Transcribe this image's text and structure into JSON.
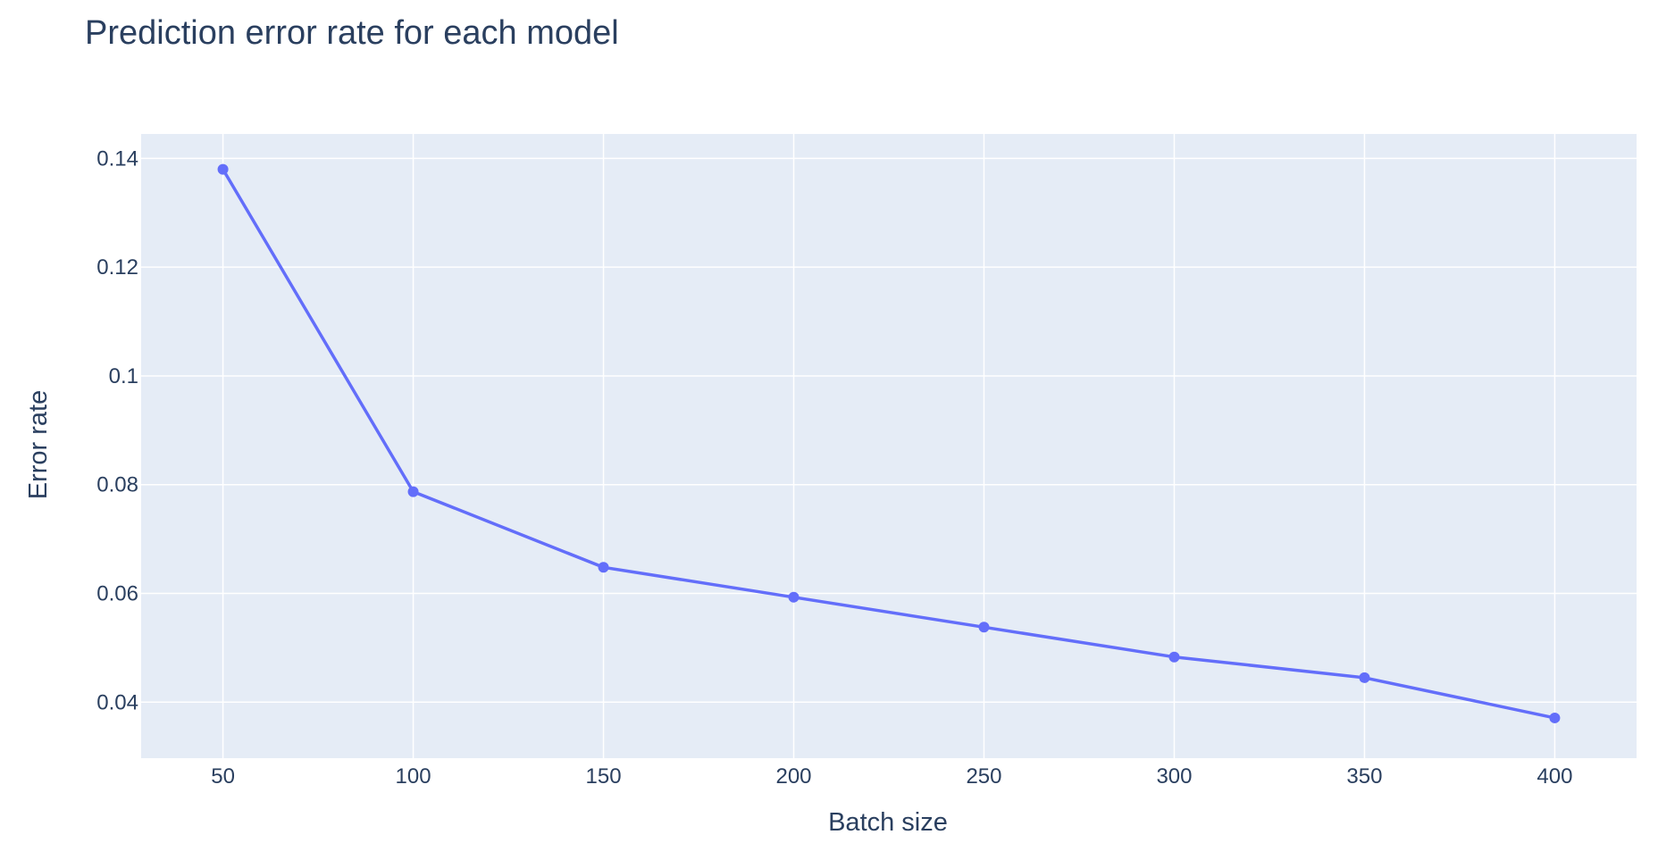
{
  "chart_data": {
    "type": "line",
    "title": "Prediction error rate for each model",
    "xlabel": "Batch size",
    "ylabel": "Error rate",
    "x": [
      50,
      100,
      150,
      200,
      250,
      300,
      350,
      400
    ],
    "series": [
      {
        "values": [
          0.138,
          0.0787,
          0.0648,
          0.0593,
          0.0538,
          0.0483,
          0.0445,
          0.0371
        ]
      }
    ],
    "xlim": [
      28.5,
      421.5
    ],
    "ylim": [
      0.0297,
      0.1445
    ],
    "x_ticks": [
      50,
      100,
      150,
      200,
      250,
      300,
      350,
      400
    ],
    "x_tick_labels": [
      "50",
      "100",
      "150",
      "200",
      "250",
      "300",
      "350",
      "400"
    ],
    "y_ticks": [
      0.04,
      0.06,
      0.08,
      0.1,
      0.12,
      0.14
    ],
    "y_tick_labels": [
      "0.04",
      "0.06",
      "0.08",
      "0.1",
      "0.12",
      "0.14"
    ],
    "grid": true,
    "legend": "none",
    "colors": {
      "line": "#636efa",
      "plot_background": "#e5ecf6",
      "grid": "#ffffff",
      "text": "#2a3f5f"
    }
  }
}
